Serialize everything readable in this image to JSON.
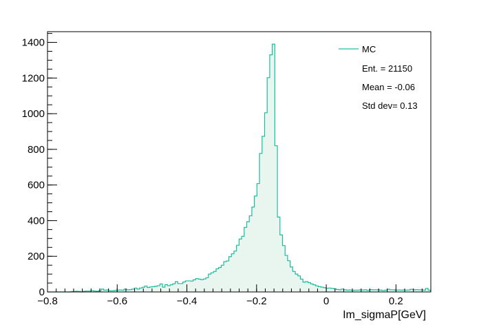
{
  "chart_data": {
    "type": "histogram",
    "title": "",
    "xlabel": "Im_sigmaP[GeV]",
    "ylabel": "",
    "xlim": [
      -0.8,
      0.3
    ],
    "ylim": [
      0,
      1460
    ],
    "x_ticks": [
      -0.8,
      -0.6,
      -0.4,
      -0.2,
      0,
      0.2
    ],
    "x_tick_labels": [
      "−0.8",
      "−0.6",
      "−0.4",
      "−0.2",
      "0",
      "0.2"
    ],
    "y_ticks": [
      0,
      200,
      400,
      600,
      800,
      1000,
      1200,
      1400
    ],
    "y_tick_labels": [
      "0",
      "200",
      "400",
      "600",
      "800",
      "1000",
      "1200",
      "1400"
    ],
    "grid": false,
    "legend_position": "top-right",
    "color": "#1abc9c",
    "bin_width": 0.00733,
    "series": [
      {
        "name": "MC",
        "values": [
          0,
          0,
          0,
          0,
          0,
          0,
          0,
          0,
          0,
          2,
          3,
          4,
          3,
          0,
          4,
          5,
          5,
          8,
          5,
          4,
          7,
          16,
          10,
          11,
          7,
          7,
          9,
          10,
          11,
          10,
          16,
          12,
          13,
          16,
          22,
          16,
          22,
          26,
          33,
          25,
          28,
          30,
          32,
          35,
          45,
          27,
          41,
          35,
          40,
          46,
          58,
          47,
          47,
          56,
          62,
          62,
          61,
          68,
          75,
          72,
          69,
          73,
          80,
          100,
          108,
          115,
          130,
          137,
          150,
          170,
          174,
          198,
          214,
          229,
          262,
          297,
          312,
          362,
          394,
          427,
          476,
          538,
          608,
          777,
          873,
          1005,
          1202,
          1330,
          1390,
          820,
          420,
          320,
          260,
          205,
          175,
          140,
          115,
          100,
          90,
          72,
          55,
          58,
          52,
          45,
          40,
          34,
          30,
          27,
          24,
          21,
          22,
          20,
          18,
          14,
          12,
          16,
          12,
          10,
          11,
          9,
          10,
          10,
          11,
          11,
          12,
          9,
          13,
          12,
          12,
          12,
          10,
          8,
          10,
          15,
          12,
          12,
          10,
          11,
          10,
          11,
          10,
          11,
          15,
          12,
          13,
          12,
          12,
          10,
          20,
          10
        ]
      }
    ],
    "stats": {
      "legend_label": "MC",
      "entries": "Ent. = 21150",
      "mean": "Mean = -0.06",
      "std": "Std dev= 0.13"
    }
  }
}
